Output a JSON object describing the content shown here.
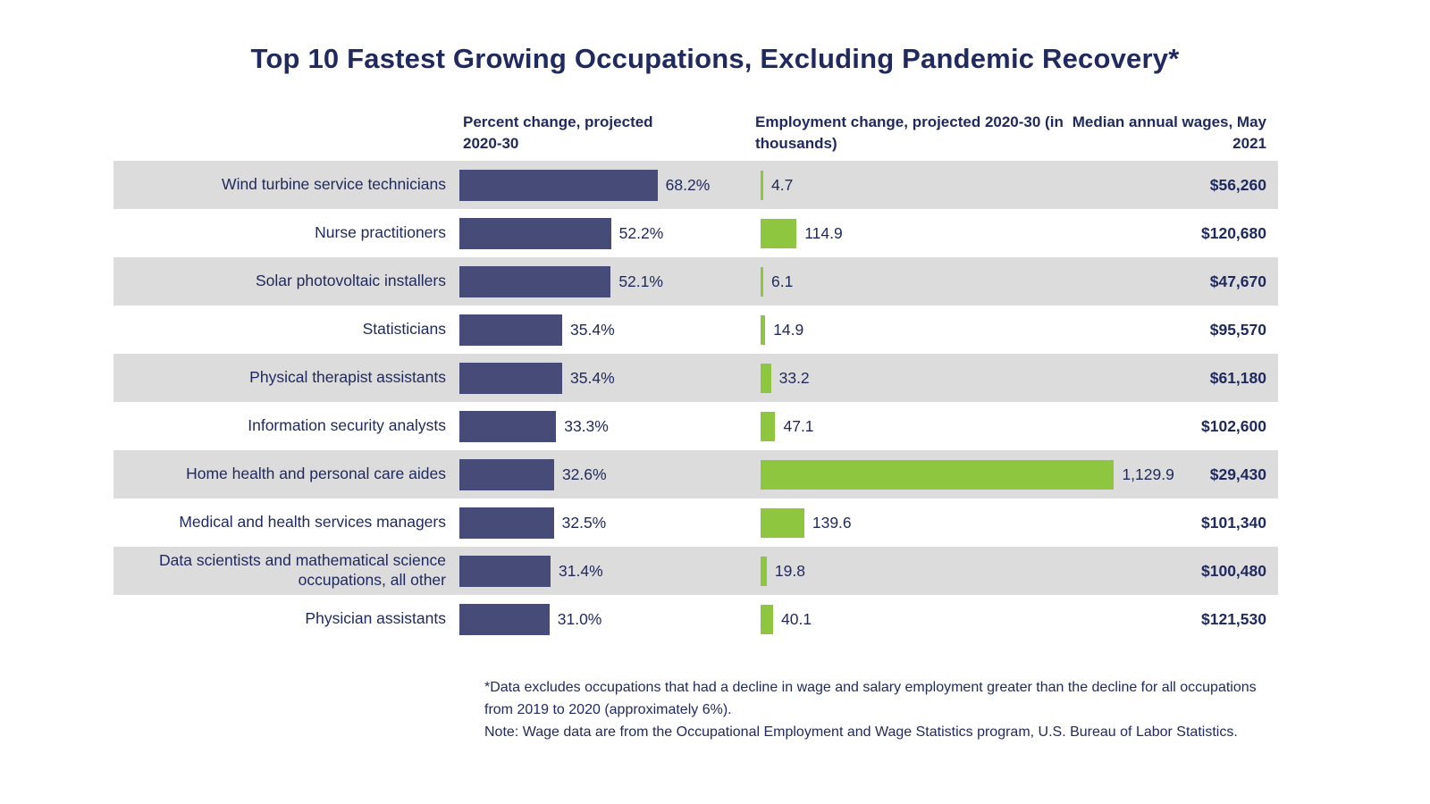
{
  "colors": {
    "navy_text": "#212a5e",
    "percent_bar": "#474b78",
    "employment_bar": "#8ec63f",
    "row_stripe": "#dcdcdc",
    "background": "#ffffff"
  },
  "chart_data": {
    "type": "bar",
    "orientation": "horizontal",
    "title": "Top 10 Fastest Growing Occupations, Excluding Pandemic Recovery*",
    "columns": {
      "percent": "Percent change, projected 2020-30",
      "employment": "Employment change, projected 2020-30 (in thousands)",
      "wages": "Median annual wages, May 2021"
    },
    "categories": [
      "Wind turbine service technicians",
      "Nurse practitioners",
      "Solar photovoltaic installers",
      "Statisticians",
      "Physical therapist assistants",
      "Information security analysts",
      "Home health and personal care aides",
      "Medical and health services managers",
      "Data scientists and mathematical science occupations, all other",
      "Physician assistants"
    ],
    "series": [
      {
        "name": "Percent change, projected 2020-30",
        "values": [
          68.2,
          52.2,
          52.1,
          35.4,
          35.4,
          33.3,
          32.6,
          32.5,
          31.4,
          31.0
        ]
      },
      {
        "name": "Employment change, projected 2020-30 (in thousands)",
        "values": [
          4.7,
          114.9,
          6.1,
          14.9,
          33.2,
          47.1,
          1129.9,
          139.6,
          19.8,
          40.1
        ]
      },
      {
        "name": "Median annual wages, May 2021",
        "values": [
          56260,
          120680,
          47670,
          95570,
          61180,
          102600,
          29430,
          101340,
          100480,
          121530
        ]
      }
    ],
    "rows": [
      {
        "occupation": "Wind turbine service technicians",
        "percent": 68.2,
        "percent_label": "68.2%",
        "employment": 4.7,
        "employment_label": "4.7",
        "wage": "$56,260"
      },
      {
        "occupation": "Nurse practitioners",
        "percent": 52.2,
        "percent_label": "52.2%",
        "employment": 114.9,
        "employment_label": "114.9",
        "wage": "$120,680"
      },
      {
        "occupation": "Solar photovoltaic installers",
        "percent": 52.1,
        "percent_label": "52.1%",
        "employment": 6.1,
        "employment_label": "6.1",
        "wage": "$47,670"
      },
      {
        "occupation": "Statisticians",
        "percent": 35.4,
        "percent_label": "35.4%",
        "employment": 14.9,
        "employment_label": "14.9",
        "wage": "$95,570"
      },
      {
        "occupation": "Physical therapist assistants",
        "percent": 35.4,
        "percent_label": "35.4%",
        "employment": 33.2,
        "employment_label": "33.2",
        "wage": "$61,180"
      },
      {
        "occupation": "Information security analysts",
        "percent": 33.3,
        "percent_label": "33.3%",
        "employment": 47.1,
        "employment_label": "47.1",
        "wage": "$102,600"
      },
      {
        "occupation": "Home health and personal care aides",
        "percent": 32.6,
        "percent_label": "32.6%",
        "employment": 1129.9,
        "employment_label": "1,129.9",
        "wage": "$29,430"
      },
      {
        "occupation": "Medical and health services managers",
        "percent": 32.5,
        "percent_label": "32.5%",
        "employment": 139.6,
        "employment_label": "139.6",
        "wage": "$101,340"
      },
      {
        "occupation": "Data scientists and mathematical science occupations, all other",
        "percent": 31.4,
        "percent_label": "31.4%",
        "employment": 19.8,
        "employment_label": "19.8",
        "wage": "$100,480"
      },
      {
        "occupation": "Physician assistants",
        "percent": 31.0,
        "percent_label": "31.0%",
        "employment": 40.1,
        "employment_label": "40.1",
        "wage": "$121,530"
      }
    ],
    "footnote": "*Data excludes occupations that had a decline in wage and salary employment greater than the decline for all occupations from 2019 to 2020 (approximately 6%).",
    "note": "Note: Wage data are from the Occupational Employment and Wage Statistics program, U.S. Bureau of Labor Statistics.",
    "legend_position": "none",
    "grid": false
  }
}
